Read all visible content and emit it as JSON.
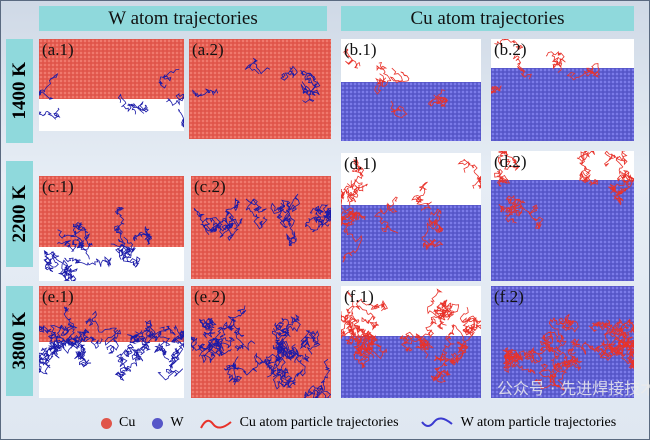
{
  "headers": {
    "w": "W atom trajectories",
    "cu": "Cu atom trajectories"
  },
  "rows": [
    "1400 K",
    "2200 K",
    "3800 K"
  ],
  "panels": {
    "a1": "(a.1)",
    "a2": "(a.2)",
    "b1": "(b.1)",
    "b2": "(b.2)",
    "c1": "(c.1)",
    "c2": "(c.2)",
    "d1": "(d.1)",
    "d2": "(d.2)",
    "e1": "(e.1)",
    "e2": "(e.2)",
    "f1": "(f.1)",
    "f2": "(f.2)"
  },
  "legend": {
    "cu": "Cu",
    "w": "W",
    "cu_traj": "Cu atom particle trajectories",
    "w_traj": "W atom particle trajectories"
  },
  "watermark": "公众号 · 先进焊接技术",
  "colors": {
    "cu": "#e0554a",
    "w": "#5656c8",
    "cu_traj": "#e8322a",
    "w_traj": "#1a1aa8",
    "header": "#8fd9dc"
  }
}
